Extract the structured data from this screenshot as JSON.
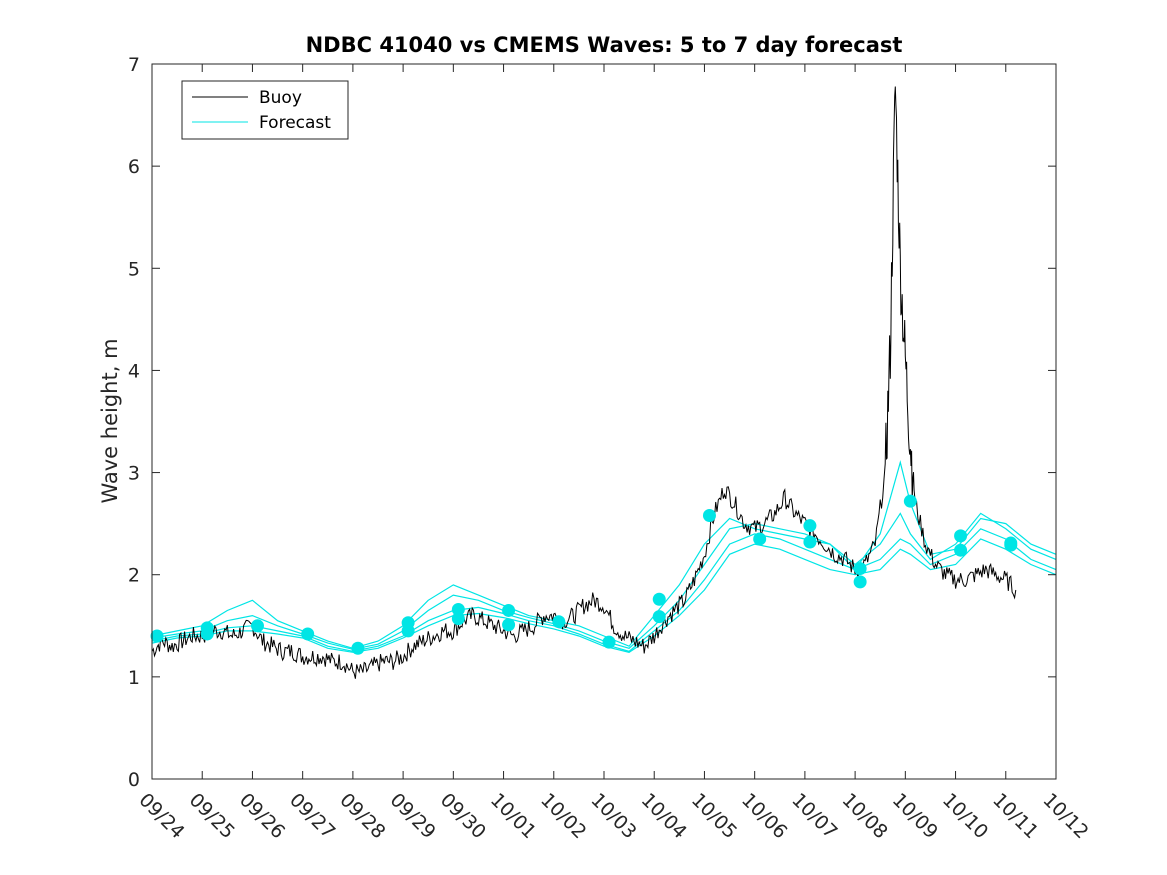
{
  "chart_data": {
    "type": "line",
    "title": "NDBC 41040 vs CMEMS Waves: 5 to 7 day forecast",
    "xlabel": "",
    "ylabel": "Wave height, m",
    "xlim": [
      "09/24",
      "10/12"
    ],
    "ylim": [
      0,
      7
    ],
    "x_ticks": [
      "09/24",
      "09/25",
      "09/26",
      "09/27",
      "09/28",
      "09/29",
      "09/30",
      "10/01",
      "10/02",
      "10/03",
      "10/04",
      "10/05",
      "10/06",
      "10/07",
      "10/08",
      "10/09",
      "10/10",
      "10/11",
      "10/12"
    ],
    "y_ticks": [
      "0",
      "1",
      "2",
      "3",
      "4",
      "5",
      "6",
      "7"
    ],
    "grid": false,
    "legend": {
      "placement": "top-left",
      "entries": [
        {
          "label": "Buoy",
          "color": "#000000"
        },
        {
          "label": "Forecast",
          "color": "#00e5e5"
        }
      ]
    },
    "buoy_series": {
      "name": "Buoy",
      "color": "#000000",
      "points": [
        [
          0.0,
          1.25
        ],
        [
          0.2,
          1.35
        ],
        [
          0.4,
          1.3
        ],
        [
          0.6,
          1.35
        ],
        [
          0.8,
          1.4
        ],
        [
          1.0,
          1.4
        ],
        [
          1.2,
          1.45
        ],
        [
          1.4,
          1.45
        ],
        [
          1.6,
          1.4
        ],
        [
          1.8,
          1.45
        ],
        [
          2.0,
          1.5
        ],
        [
          2.2,
          1.35
        ],
        [
          2.4,
          1.3
        ],
        [
          2.6,
          1.25
        ],
        [
          2.8,
          1.25
        ],
        [
          3.0,
          1.2
        ],
        [
          3.2,
          1.2
        ],
        [
          3.4,
          1.2
        ],
        [
          3.6,
          1.15
        ],
        [
          3.8,
          1.15
        ],
        [
          4.0,
          1.05
        ],
        [
          4.2,
          1.05
        ],
        [
          4.4,
          1.1
        ],
        [
          4.6,
          1.15
        ],
        [
          4.8,
          1.15
        ],
        [
          5.0,
          1.2
        ],
        [
          5.2,
          1.3
        ],
        [
          5.4,
          1.35
        ],
        [
          5.6,
          1.4
        ],
        [
          5.8,
          1.45
        ],
        [
          6.0,
          1.45
        ],
        [
          6.2,
          1.55
        ],
        [
          6.4,
          1.6
        ],
        [
          6.6,
          1.55
        ],
        [
          6.8,
          1.5
        ],
        [
          7.0,
          1.45
        ],
        [
          7.2,
          1.4
        ],
        [
          7.4,
          1.45
        ],
        [
          7.6,
          1.5
        ],
        [
          7.8,
          1.6
        ],
        [
          8.0,
          1.6
        ],
        [
          8.2,
          1.55
        ],
        [
          8.4,
          1.6
        ],
        [
          8.6,
          1.7
        ],
        [
          8.8,
          1.75
        ],
        [
          9.0,
          1.7
        ],
        [
          9.2,
          1.5
        ],
        [
          9.4,
          1.4
        ],
        [
          9.6,
          1.35
        ],
        [
          9.8,
          1.3
        ],
        [
          10.0,
          1.4
        ],
        [
          10.2,
          1.55
        ],
        [
          10.4,
          1.65
        ],
        [
          10.6,
          1.75
        ],
        [
          10.8,
          1.95
        ],
        [
          11.0,
          2.2
        ],
        [
          11.2,
          2.6
        ],
        [
          11.4,
          2.85
        ],
        [
          11.6,
          2.7
        ],
        [
          11.8,
          2.5
        ],
        [
          12.0,
          2.45
        ],
        [
          12.2,
          2.5
        ],
        [
          12.4,
          2.6
        ],
        [
          12.6,
          2.75
        ],
        [
          12.8,
          2.6
        ],
        [
          13.0,
          2.5
        ],
        [
          13.2,
          2.4
        ],
        [
          13.4,
          2.3
        ],
        [
          13.6,
          2.2
        ],
        [
          13.8,
          2.15
        ],
        [
          14.0,
          2.05
        ],
        [
          14.2,
          2.1
        ],
        [
          14.4,
          2.3
        ],
        [
          14.6,
          3.0
        ],
        [
          14.7,
          4.2
        ],
        [
          14.8,
          6.8
        ],
        [
          14.9,
          5.0
        ],
        [
          15.0,
          4.1
        ],
        [
          15.1,
          3.3
        ],
        [
          15.2,
          2.7
        ],
        [
          15.4,
          2.3
        ],
        [
          15.6,
          2.1
        ],
        [
          15.8,
          2.0
        ],
        [
          16.0,
          1.95
        ],
        [
          16.2,
          1.95
        ],
        [
          16.4,
          2.0
        ],
        [
          16.6,
          2.05
        ],
        [
          16.8,
          2.0
        ],
        [
          17.0,
          1.95
        ],
        [
          17.2,
          1.85
        ]
      ]
    },
    "forecast_series": [
      {
        "name": "",
        "color": "#00e5e5",
        "points": [
          [
            0.0,
            1.4
          ],
          [
            0.5,
            1.45
          ],
          [
            1.0,
            1.5
          ],
          [
            1.5,
            1.65
          ],
          [
            2.0,
            1.75
          ],
          [
            2.5,
            1.55
          ],
          [
            3.0,
            1.45
          ],
          [
            3.5,
            1.35
          ],
          [
            4.0,
            1.28
          ],
          [
            4.5,
            1.35
          ],
          [
            5.0,
            1.5
          ],
          [
            5.5,
            1.75
          ],
          [
            6.0,
            1.9
          ],
          [
            6.5,
            1.8
          ],
          [
            7.0,
            1.7
          ],
          [
            7.5,
            1.6
          ],
          [
            8.0,
            1.55
          ],
          [
            8.5,
            1.5
          ],
          [
            9.0,
            1.4
          ],
          [
            9.5,
            1.3
          ],
          [
            10.0,
            1.6
          ],
          [
            10.5,
            1.9
          ],
          [
            11.0,
            2.3
          ],
          [
            11.5,
            2.55
          ],
          [
            12.0,
            2.45
          ],
          [
            12.5,
            2.4
          ],
          [
            13.0,
            2.35
          ],
          [
            13.5,
            2.3
          ],
          [
            14.0,
            2.05
          ],
          [
            14.5,
            2.4
          ],
          [
            14.9,
            3.1
          ],
          [
            15.1,
            2.7
          ],
          [
            15.5,
            2.2
          ],
          [
            16.0,
            2.25
          ],
          [
            16.5,
            2.55
          ],
          [
            17.0,
            2.5
          ],
          [
            17.5,
            2.3
          ],
          [
            18.0,
            2.2
          ]
        ]
      },
      {
        "name": "",
        "color": "#00e5e5",
        "points": [
          [
            0.0,
            1.38
          ],
          [
            0.5,
            1.42
          ],
          [
            1.0,
            1.45
          ],
          [
            1.5,
            1.55
          ],
          [
            2.0,
            1.6
          ],
          [
            2.5,
            1.5
          ],
          [
            3.0,
            1.42
          ],
          [
            3.5,
            1.33
          ],
          [
            4.0,
            1.27
          ],
          [
            4.5,
            1.32
          ],
          [
            5.0,
            1.45
          ],
          [
            5.5,
            1.65
          ],
          [
            6.0,
            1.8
          ],
          [
            6.5,
            1.75
          ],
          [
            7.0,
            1.65
          ],
          [
            7.5,
            1.58
          ],
          [
            8.0,
            1.52
          ],
          [
            8.5,
            1.45
          ],
          [
            9.0,
            1.35
          ],
          [
            9.5,
            1.28
          ],
          [
            10.0,
            1.5
          ],
          [
            10.5,
            1.75
          ],
          [
            11.0,
            2.1
          ],
          [
            11.5,
            2.45
          ],
          [
            12.0,
            2.5
          ],
          [
            12.5,
            2.45
          ],
          [
            13.0,
            2.4
          ],
          [
            13.5,
            2.3
          ],
          [
            14.0,
            2.1
          ],
          [
            14.5,
            2.3
          ],
          [
            14.9,
            2.6
          ],
          [
            15.1,
            2.4
          ],
          [
            15.5,
            2.15
          ],
          [
            16.0,
            2.3
          ],
          [
            16.5,
            2.6
          ],
          [
            17.0,
            2.45
          ],
          [
            17.5,
            2.25
          ],
          [
            18.0,
            2.15
          ]
        ]
      },
      {
        "name": "",
        "color": "#00e5e5",
        "points": [
          [
            0.0,
            1.35
          ],
          [
            0.5,
            1.4
          ],
          [
            1.0,
            1.42
          ],
          [
            1.5,
            1.48
          ],
          [
            2.0,
            1.5
          ],
          [
            2.5,
            1.45
          ],
          [
            3.0,
            1.4
          ],
          [
            3.5,
            1.3
          ],
          [
            4.0,
            1.25
          ],
          [
            4.5,
            1.3
          ],
          [
            5.0,
            1.4
          ],
          [
            5.5,
            1.55
          ],
          [
            6.0,
            1.65
          ],
          [
            6.5,
            1.68
          ],
          [
            7.0,
            1.62
          ],
          [
            7.5,
            1.55
          ],
          [
            8.0,
            1.5
          ],
          [
            8.5,
            1.42
          ],
          [
            9.0,
            1.32
          ],
          [
            9.5,
            1.25
          ],
          [
            10.0,
            1.45
          ],
          [
            10.5,
            1.65
          ],
          [
            11.0,
            1.95
          ],
          [
            11.5,
            2.3
          ],
          [
            12.0,
            2.4
          ],
          [
            12.5,
            2.35
          ],
          [
            13.0,
            2.25
          ],
          [
            13.5,
            2.15
          ],
          [
            14.0,
            2.05
          ],
          [
            14.5,
            2.15
          ],
          [
            14.9,
            2.35
          ],
          [
            15.1,
            2.3
          ],
          [
            15.5,
            2.1
          ],
          [
            16.0,
            2.2
          ],
          [
            16.5,
            2.45
          ],
          [
            17.0,
            2.35
          ],
          [
            17.5,
            2.15
          ],
          [
            18.0,
            2.05
          ]
        ]
      },
      {
        "name": "",
        "color": "#00e5e5",
        "points": [
          [
            0.0,
            1.33
          ],
          [
            0.5,
            1.38
          ],
          [
            1.0,
            1.4
          ],
          [
            1.5,
            1.45
          ],
          [
            2.0,
            1.45
          ],
          [
            2.5,
            1.42
          ],
          [
            3.0,
            1.38
          ],
          [
            3.5,
            1.28
          ],
          [
            4.0,
            1.24
          ],
          [
            4.5,
            1.28
          ],
          [
            5.0,
            1.38
          ],
          [
            5.5,
            1.5
          ],
          [
            6.0,
            1.6
          ],
          [
            6.5,
            1.62
          ],
          [
            7.0,
            1.58
          ],
          [
            7.5,
            1.52
          ],
          [
            8.0,
            1.47
          ],
          [
            8.5,
            1.4
          ],
          [
            9.0,
            1.3
          ],
          [
            9.5,
            1.24
          ],
          [
            10.0,
            1.4
          ],
          [
            10.5,
            1.6
          ],
          [
            11.0,
            1.85
          ],
          [
            11.5,
            2.2
          ],
          [
            12.0,
            2.3
          ],
          [
            12.5,
            2.25
          ],
          [
            13.0,
            2.15
          ],
          [
            13.5,
            2.05
          ],
          [
            14.0,
            2.0
          ],
          [
            14.5,
            2.05
          ],
          [
            14.9,
            2.25
          ],
          [
            15.1,
            2.2
          ],
          [
            15.5,
            2.05
          ],
          [
            16.0,
            2.1
          ],
          [
            16.5,
            2.35
          ],
          [
            17.0,
            2.25
          ],
          [
            17.5,
            2.1
          ],
          [
            18.0,
            2.0
          ]
        ]
      }
    ],
    "forecast_markers": {
      "color": "#00e5e5",
      "points": [
        [
          0.1,
          1.4
        ],
        [
          1.1,
          1.42
        ],
        [
          1.1,
          1.48
        ],
        [
          2.1,
          1.5
        ],
        [
          3.1,
          1.42
        ],
        [
          4.1,
          1.28
        ],
        [
          5.1,
          1.45
        ],
        [
          5.1,
          1.53
        ],
        [
          6.1,
          1.57
        ],
        [
          6.1,
          1.66
        ],
        [
          7.1,
          1.51
        ],
        [
          7.1,
          1.65
        ],
        [
          8.1,
          1.54
        ],
        [
          9.1,
          1.34
        ],
        [
          10.1,
          1.59
        ],
        [
          10.1,
          1.76
        ],
        [
          11.1,
          2.58
        ],
        [
          12.1,
          2.35
        ],
        [
          13.1,
          2.32
        ],
        [
          13.1,
          2.48
        ],
        [
          14.1,
          1.93
        ],
        [
          14.1,
          2.06
        ],
        [
          15.1,
          2.72
        ],
        [
          16.1,
          2.24
        ],
        [
          16.1,
          2.38
        ],
        [
          17.1,
          2.29
        ],
        [
          17.1,
          2.31
        ]
      ]
    }
  }
}
